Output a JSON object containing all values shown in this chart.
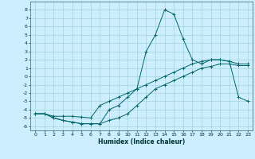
{
  "title": "",
  "xlabel": "Humidex (Indice chaleur)",
  "ylabel": "",
  "bg_color": "#cceeff",
  "grid_color": "#99cccc",
  "line_color": "#006666",
  "xlim": [
    -0.5,
    23.5
  ],
  "ylim": [
    -6.5,
    9.0
  ],
  "xticks": [
    0,
    1,
    2,
    3,
    4,
    5,
    6,
    7,
    8,
    9,
    10,
    11,
    12,
    13,
    14,
    15,
    16,
    17,
    18,
    19,
    20,
    21,
    22,
    23
  ],
  "yticks": [
    8,
    7,
    6,
    5,
    4,
    3,
    2,
    1,
    0,
    -1,
    -2,
    -3,
    -4,
    -5,
    -6
  ],
  "series1_x": [
    0,
    1,
    2,
    3,
    4,
    5,
    6,
    7,
    8,
    9,
    10,
    11,
    12,
    13,
    14,
    15,
    16,
    17,
    18,
    19,
    20,
    21,
    22,
    23
  ],
  "series1_y": [
    -4.5,
    -4.5,
    -5.0,
    -5.3,
    -5.5,
    -5.7,
    -5.7,
    -5.7,
    -4.0,
    -3.5,
    -2.5,
    -1.5,
    3.0,
    5.0,
    8.0,
    7.5,
    4.5,
    2.0,
    1.5,
    2.0,
    2.0,
    1.8,
    -2.5,
    -3.0
  ],
  "series2_x": [
    0,
    1,
    2,
    3,
    4,
    5,
    6,
    7,
    8,
    9,
    10,
    11,
    12,
    13,
    14,
    15,
    16,
    17,
    18,
    19,
    20,
    21,
    22,
    23
  ],
  "series2_y": [
    -4.5,
    -4.5,
    -4.8,
    -4.8,
    -4.8,
    -4.9,
    -5.0,
    -3.5,
    -3.0,
    -2.5,
    -2.0,
    -1.5,
    -1.0,
    -0.5,
    0.0,
    0.5,
    1.0,
    1.5,
    1.8,
    2.0,
    2.0,
    1.8,
    1.5,
    1.5
  ],
  "series3_x": [
    0,
    1,
    2,
    3,
    4,
    5,
    6,
    7,
    8,
    9,
    10,
    11,
    12,
    13,
    14,
    15,
    16,
    17,
    18,
    19,
    20,
    21,
    22,
    23
  ],
  "series3_y": [
    -4.5,
    -4.5,
    -5.0,
    -5.3,
    -5.5,
    -5.7,
    -5.7,
    -5.7,
    -5.3,
    -5.0,
    -4.5,
    -3.5,
    -2.5,
    -1.5,
    -1.0,
    -0.5,
    0.0,
    0.5,
    1.0,
    1.2,
    1.5,
    1.5,
    1.3,
    1.3
  ]
}
